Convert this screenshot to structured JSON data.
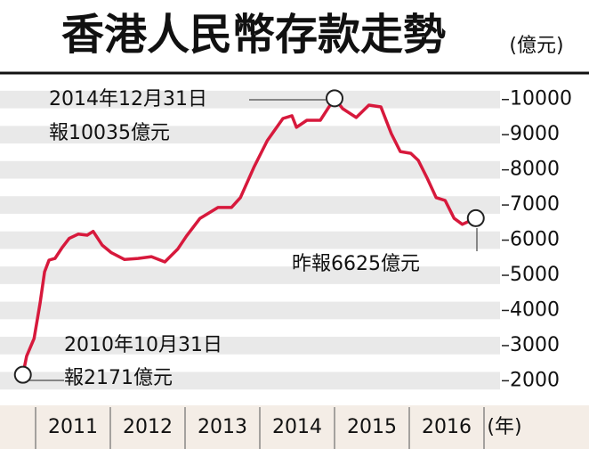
{
  "chart_data": {
    "type": "line",
    "title": "香港人民幣存款走勢",
    "y_unit": "(億元)",
    "x_unit": "(年)",
    "color": "#d7193c",
    "x": [
      2010.83,
      2010.88,
      2010.98,
      2011.06,
      2011.12,
      2011.18,
      2011.26,
      2011.36,
      2011.45,
      2011.57,
      2011.69,
      2011.77,
      2011.89,
      2012.01,
      2012.19,
      2012.37,
      2012.55,
      2012.73,
      2012.9,
      2013.02,
      2013.2,
      2013.44,
      2013.62,
      2013.74,
      2013.92,
      2014.1,
      2014.31,
      2014.43,
      2014.49,
      2014.63,
      2014.81,
      2015.0,
      2015.11,
      2015.29,
      2015.46,
      2015.62,
      2015.76,
      2015.88,
      2016.02,
      2016.12,
      2016.24,
      2016.36,
      2016.48,
      2016.6,
      2016.71,
      2016.89
    ],
    "values": [
      2171,
      2700,
      3200,
      4200,
      5100,
      5430,
      5480,
      5800,
      6050,
      6170,
      6140,
      6250,
      5860,
      5650,
      5450,
      5480,
      5530,
      5380,
      5740,
      6120,
      6620,
      6930,
      6930,
      7210,
      8070,
      8830,
      9460,
      9540,
      9210,
      9410,
      9410,
      10035,
      9740,
      9490,
      9840,
      9790,
      9030,
      8520,
      8470,
      8270,
      7760,
      7210,
      7130,
      6620,
      6450,
      6625
    ],
    "xlim": [
      2010.6,
      2017.2
    ],
    "xticks": [
      2011,
      2012,
      2013,
      2014,
      2015,
      2016
    ],
    "ylim": [
      1300,
      10500
    ],
    "yticks": [
      2000,
      3000,
      4000,
      5000,
      6000,
      7000,
      8000,
      9000,
      10000
    ],
    "annotations": [
      "2014年12月31日",
      "報10035億元",
      "2010年10月31日",
      "報2171億元",
      "昨報6625億元"
    ]
  }
}
